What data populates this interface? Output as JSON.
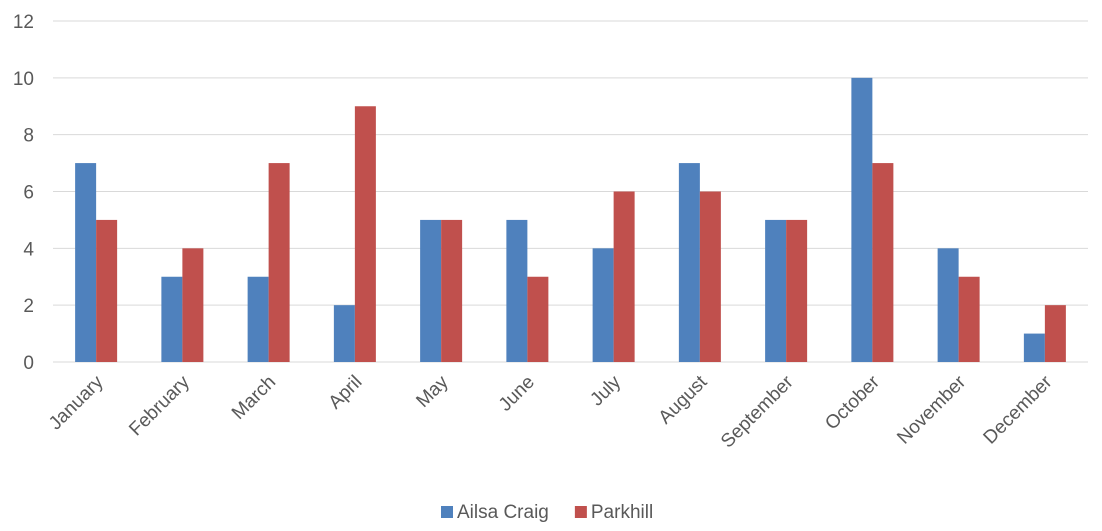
{
  "chart_data": {
    "type": "bar",
    "title": "",
    "xlabel": "",
    "ylabel": "",
    "ylim": [
      0,
      12
    ],
    "yticks": [
      0,
      2,
      4,
      6,
      8,
      10,
      12
    ],
    "grid": true,
    "legend_position": "bottom",
    "categories": [
      "January",
      "February",
      "March",
      "April",
      "May",
      "June",
      "July",
      "August",
      "September",
      "October",
      "November",
      "December"
    ],
    "series": [
      {
        "name": "Ailsa Craig",
        "color": "#4f81bd",
        "values": [
          7,
          3,
          3,
          2,
          5,
          5,
          4,
          7,
          5,
          10,
          4,
          1
        ]
      },
      {
        "name": "Parkhill",
        "color": "#c0504d",
        "values": [
          5,
          4,
          7,
          9,
          5,
          3,
          6,
          6,
          5,
          7,
          3,
          2
        ]
      }
    ]
  }
}
